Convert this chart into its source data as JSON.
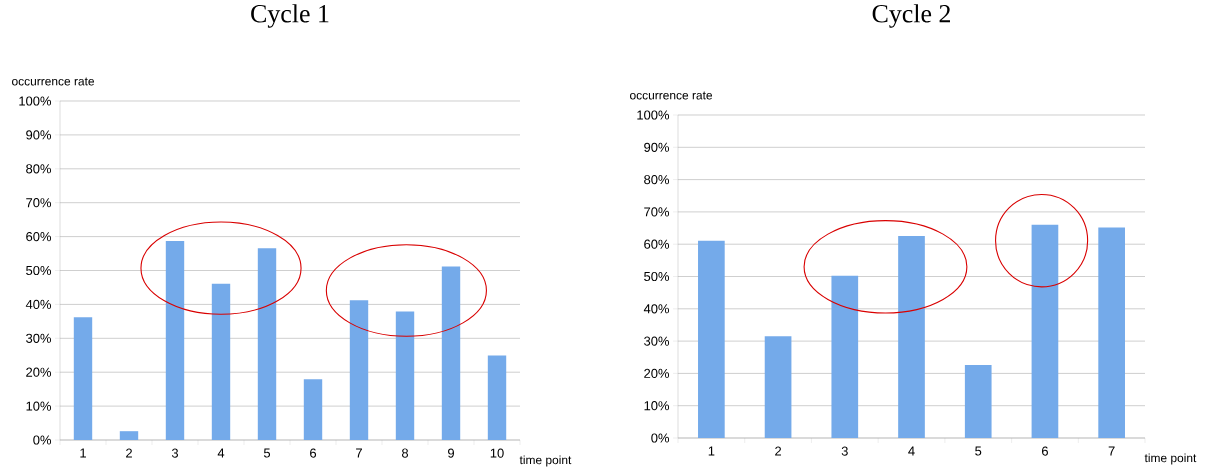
{
  "chart_data": [
    {
      "type": "bar",
      "title": "Cycle 1",
      "xlabel": "time point",
      "ylabel": "occurrence rate",
      "categories": [
        "1",
        "2",
        "3",
        "4",
        "5",
        "6",
        "7",
        "8",
        "9",
        "10"
      ],
      "values": [
        36.2,
        2.6,
        58.7,
        46.1,
        56.6,
        17.9,
        41.2,
        37.9,
        51.2,
        24.9
      ],
      "color": "#74aaea",
      "ylim": [
        0,
        100
      ],
      "yticks": [
        {
          "value": 0,
          "label": "0%"
        },
        {
          "value": 10,
          "label": "10%"
        },
        {
          "value": 20,
          "label": "20%"
        },
        {
          "value": 30,
          "label": "30%"
        },
        {
          "value": 40,
          "label": "40%"
        },
        {
          "value": 50,
          "label": "50%"
        },
        {
          "value": 60,
          "label": "60%"
        },
        {
          "value": 70,
          "label": "70%"
        },
        {
          "value": 80,
          "label": "80%"
        },
        {
          "value": 90,
          "label": "90%"
        },
        {
          "value": 100,
          "label": "100%"
        }
      ],
      "grid": "y"
    },
    {
      "type": "bar",
      "title": "Cycle 2",
      "xlabel": "time point",
      "ylabel": "occurrence rate",
      "categories": [
        "1",
        "2",
        "3",
        "4",
        "5",
        "6",
        "7"
      ],
      "values": [
        61.1,
        31.5,
        50.2,
        62.5,
        22.6,
        66.0,
        65.2
      ],
      "color": "#74aaea",
      "ylim": [
        0,
        100
      ],
      "yticks": [
        {
          "value": 0,
          "label": "0%"
        },
        {
          "value": 10,
          "label": "10%"
        },
        {
          "value": 20,
          "label": "20%"
        },
        {
          "value": 30,
          "label": "30%"
        },
        {
          "value": 40,
          "label": "40%"
        },
        {
          "value": 50,
          "label": "50%"
        },
        {
          "value": 60,
          "label": "60%"
        },
        {
          "value": 70,
          "label": "70%"
        },
        {
          "value": 80,
          "label": "80%"
        },
        {
          "value": 90,
          "label": "90%"
        },
        {
          "value": 100,
          "label": "100%"
        }
      ],
      "grid": "y"
    }
  ]
}
